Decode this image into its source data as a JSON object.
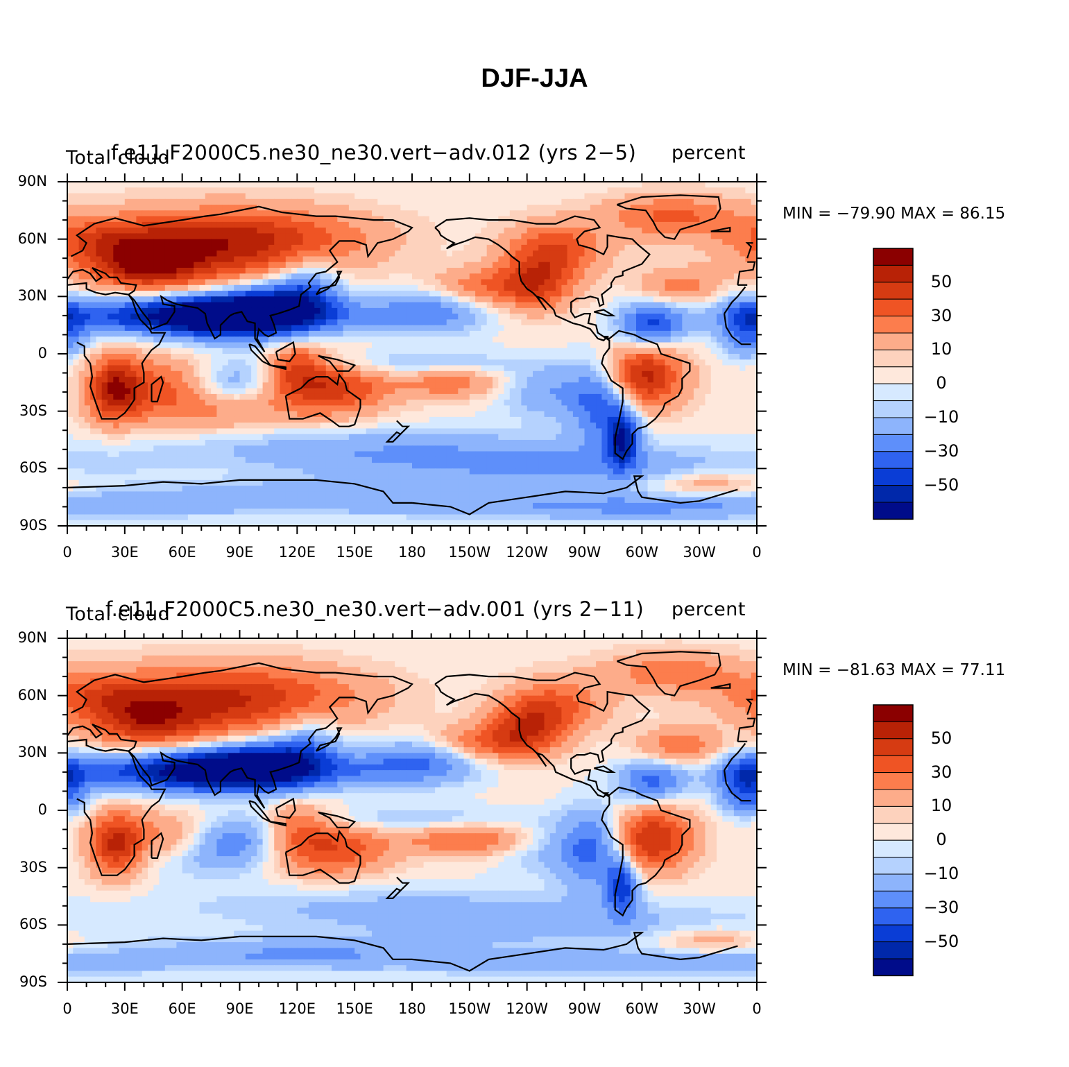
{
  "title": "DJF-JJA",
  "colors": {
    "levels": [
      "#8b0000",
      "#b82206",
      "#d63b12",
      "#ef5424",
      "#fc7d4d",
      "#fdac8a",
      "#fdd2bd",
      "#fee8dc",
      "#d6e9ff",
      "#b5d2fe",
      "#8db4fc",
      "#5e8ffa",
      "#2f63f0",
      "#0a3dd6",
      "#0028aa",
      "#000c8a"
    ]
  },
  "chart_data": [
    {
      "type": "heatmap",
      "left_title": "Total cloud",
      "center_title": "f.e11.F2000C5.ne30_ne30.vert-adv.012 (yrs 2-5)",
      "right_title": "percent",
      "min_max": "MIN = -79.90 MAX =  86.15",
      "y_ticks": [
        "90N",
        "60N",
        "30N",
        "0",
        "30S",
        "60S",
        "90S"
      ],
      "x_ticks": [
        "0",
        "30E",
        "60E",
        "90E",
        "120E",
        "150E",
        "180",
        "150W",
        "120W",
        "90W",
        "60W",
        "30W",
        "0"
      ],
      "colorbar_labels": [
        "50",
        "30",
        "10",
        "0",
        "-10",
        "-30",
        "-50"
      ],
      "min": -79.9,
      "max": 86.15
    },
    {
      "type": "heatmap",
      "left_title": "Total cloud",
      "center_title": "f.e11.F2000C5.ne30_ne30.vert-adv.001 (yrs 2-11)",
      "right_title": "percent",
      "min_max": "MIN = -81.63 MAX =  77.11",
      "y_ticks": [
        "90N",
        "60N",
        "30N",
        "0",
        "30S",
        "60S",
        "90S"
      ],
      "x_ticks": [
        "0",
        "30E",
        "60E",
        "90E",
        "120E",
        "150E",
        "180",
        "150W",
        "120W",
        "90W",
        "60W",
        "30W",
        "0"
      ],
      "colorbar_labels": [
        "50",
        "30",
        "10",
        "0",
        "-10",
        "-30",
        "-50"
      ],
      "min": -81.63,
      "max": 77.11
    }
  ]
}
